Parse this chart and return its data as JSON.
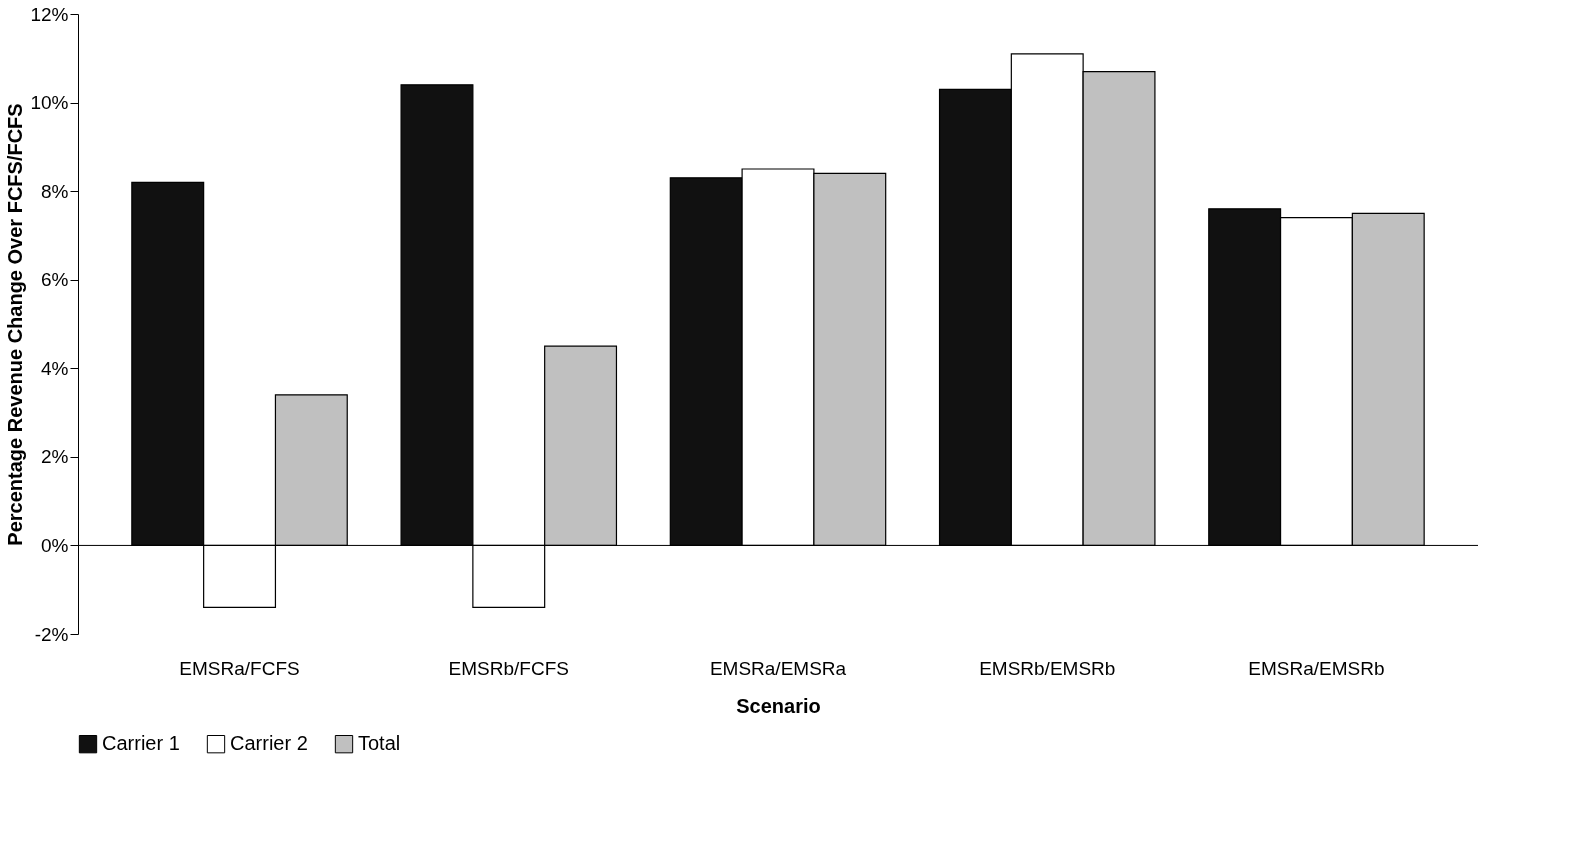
{
  "chart_data": {
    "type": "bar",
    "xlabel": "Scenario",
    "ylabel": "Percentage Revenue Change Over FCFS/FCFS",
    "categories": [
      "EMSRa/FCFS",
      "EMSRb/FCFS",
      "EMSRa/EMSRa",
      "EMSRb/EMSRb",
      "EMSRa/EMSRb"
    ],
    "series": [
      {
        "name": "Carrier 1",
        "color": "#111111",
        "values": [
          8.2,
          10.4,
          8.3,
          10.3,
          7.6
        ]
      },
      {
        "name": "Carrier 2",
        "color": "#ffffff",
        "values": [
          -1.4,
          -1.4,
          8.5,
          11.1,
          7.4
        ]
      },
      {
        "name": "Total",
        "color": "#c0c0c0",
        "values": [
          3.4,
          4.5,
          8.4,
          10.7,
          7.5
        ]
      }
    ],
    "ylim": [
      -2,
      12
    ],
    "yticks": [
      {
        "value": -2,
        "label": "-2%"
      },
      {
        "value": 0,
        "label": "0%"
      },
      {
        "value": 2,
        "label": "2%"
      },
      {
        "value": 4,
        "label": "4%"
      },
      {
        "value": 6,
        "label": "6%"
      },
      {
        "value": 8,
        "label": "8%"
      },
      {
        "value": 10,
        "label": "10%"
      },
      {
        "value": 12,
        "label": "12%"
      }
    ],
    "ref_lines": [
      {
        "axis": "y",
        "value": 0
      }
    ],
    "grid": false,
    "legend": "bottom"
  }
}
